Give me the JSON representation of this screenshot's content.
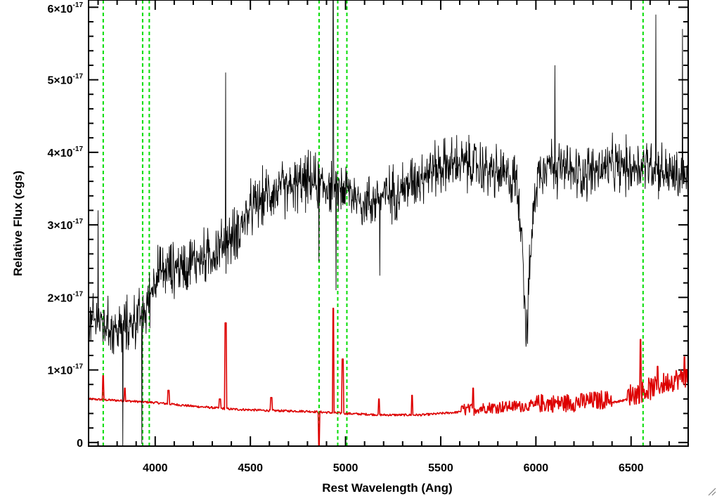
{
  "chart_data": {
    "type": "line",
    "xlabel": "Rest Wavelength (Ang)",
    "ylabel": "Relative Flux (cgs)",
    "xlim": [
      3650,
      6800
    ],
    "ylim": [
      -5e-19,
      6.1e-17
    ],
    "xticks": [
      {
        "value": 4000,
        "label": "4000"
      },
      {
        "value": 4500,
        "label": "4500"
      },
      {
        "value": 5000,
        "label": "5000"
      },
      {
        "value": 5500,
        "label": "5500"
      },
      {
        "value": 6000,
        "label": "6000"
      },
      {
        "value": 6500,
        "label": "6500"
      }
    ],
    "x_minor_step": 100,
    "yticks": [
      {
        "value": 0,
        "label": "0",
        "exp": ""
      },
      {
        "value": 1e-17,
        "label": "1×10",
        "exp": "-17"
      },
      {
        "value": 2e-17,
        "label": "2×10",
        "exp": "-17"
      },
      {
        "value": 3e-17,
        "label": "3×10",
        "exp": "-17"
      },
      {
        "value": 4e-17,
        "label": "4×10",
        "exp": "-17"
      },
      {
        "value": 5e-17,
        "label": "5×10",
        "exp": "-17"
      },
      {
        "value": 6e-17,
        "label": "6×10",
        "exp": "-17"
      }
    ],
    "y_minor_step": 2e-18,
    "grid": false,
    "colors": {
      "spectrum": "#000000",
      "model": "#dd0000",
      "lines": "#00dd00"
    },
    "vertical_lines": [
      3727,
      3934,
      3969,
      4861,
      4959,
      5007,
      6563
    ],
    "series": [
      {
        "style": "black-noisy",
        "color": "#000000",
        "x": [
          3650,
          3700,
          3750,
          3800,
          3850,
          3900,
          3950,
          4000,
          4100,
          4200,
          4300,
          4400,
          4500,
          4600,
          4700,
          4800,
          4900,
          5000,
          5100,
          5200,
          5300,
          5400,
          5500,
          5600,
          5700,
          5800,
          5900,
          5930,
          5950,
          5970,
          6000,
          6050,
          6100,
          6200,
          6300,
          6400,
          6500,
          6600,
          6700,
          6800
        ],
        "y": [
          1.6e-17,
          1.7e-17,
          1.6e-17,
          1.55e-17,
          1.6e-17,
          1.7e-17,
          1.8e-17,
          2.3e-17,
          2.4e-17,
          2.5e-17,
          2.6e-17,
          2.8e-17,
          3.2e-17,
          3.45e-17,
          3.5e-17,
          3.6e-17,
          3.55e-17,
          3.5e-17,
          3.3e-17,
          3.4e-17,
          3.5e-17,
          3.7e-17,
          3.8e-17,
          3.85e-17,
          3.8e-17,
          3.7e-17,
          3.6e-17,
          2.8e-17,
          1.4e-17,
          2.5e-17,
          3.6e-17,
          3.9e-17,
          3.8e-17,
          3.7e-17,
          3.75e-17,
          3.8e-17,
          3.8e-17,
          3.85e-17,
          3.7e-17,
          3.6e-17
        ],
        "noise_amplitude": 5e-18,
        "spikes": [
          {
            "x": 3700,
            "y": 3.2e-17
          },
          {
            "x": 3830,
            "y": -5e-19
          },
          {
            "x": 3930,
            "y": -2e-19
          },
          {
            "x": 4370,
            "y": 5.1e-17
          },
          {
            "x": 4860,
            "y": 2.5e-17
          },
          {
            "x": 4935,
            "y": 6.1e-17
          },
          {
            "x": 4950,
            "y": 2.1e-17
          },
          {
            "x": 5180,
            "y": 2.3e-17
          },
          {
            "x": 6100,
            "y": 5.2e-17
          },
          {
            "x": 6630,
            "y": 5.9e-17
          },
          {
            "x": 6770,
            "y": 5.7e-17
          }
        ]
      },
      {
        "style": "red-model",
        "color": "#dd0000",
        "x": [
          3650,
          3800,
          4000,
          4200,
          4400,
          4600,
          4800,
          5000,
          5200,
          5400,
          5600,
          5800,
          6000,
          6200,
          6400,
          6500,
          6600,
          6700,
          6800
        ],
        "y": [
          6e-18,
          5.8e-18,
          5.5e-18,
          5e-18,
          4.6e-18,
          4.4e-18,
          4.3e-18,
          4e-18,
          3.8e-18,
          3.8e-18,
          4.2e-18,
          4.6e-18,
          4.8e-18,
          5e-18,
          5.5e-18,
          6e-18,
          6.8e-18,
          7.8e-18,
          8.5e-18
        ],
        "peaks": [
          {
            "x": 3727,
            "y": 9.2e-18
          },
          {
            "x": 3840,
            "y": 7.5e-18
          },
          {
            "x": 4070,
            "y": 7.2e-18
          },
          {
            "x": 4340,
            "y": 6e-18
          },
          {
            "x": 4370,
            "y": 1.65e-17
          },
          {
            "x": 4610,
            "y": 6.2e-18
          },
          {
            "x": 4861,
            "y": -5e-19
          },
          {
            "x": 4935,
            "y": 1.85e-17
          },
          {
            "x": 4985,
            "y": 1.15e-17
          },
          {
            "x": 5175,
            "y": 6e-18
          },
          {
            "x": 5350,
            "y": 6.5e-18
          },
          {
            "x": 5670,
            "y": 7.5e-18
          },
          {
            "x": 6550,
            "y": 1.42e-17
          },
          {
            "x": 6640,
            "y": 1.05e-17
          },
          {
            "x": 6780,
            "y": 1.18e-17
          }
        ]
      }
    ]
  }
}
